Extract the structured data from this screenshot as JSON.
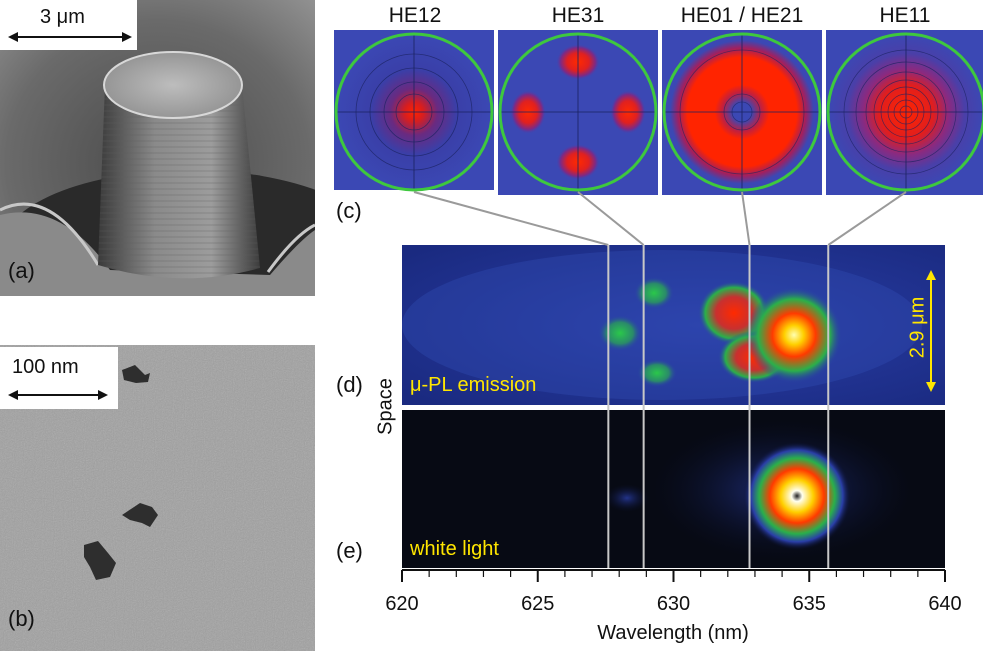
{
  "panels": {
    "a": {
      "label": "(a)",
      "scale_text": "3 μm"
    },
    "b": {
      "label": "(b)",
      "scale_text": "100 nm"
    },
    "c": {
      "label": "(c)",
      "modes": [
        {
          "name": "HE12",
          "type": "center"
        },
        {
          "name": "HE31",
          "type": "four-lobe"
        },
        {
          "name": "HE01 / HE21",
          "type": "ring"
        },
        {
          "name": "HE11",
          "type": "gaussian"
        }
      ]
    },
    "d": {
      "label": "(d)",
      "caption": "μ-PL emission",
      "scale_text": "2.9 μm"
    },
    "e": {
      "label": "(e)",
      "caption": "white light"
    },
    "space_label": "Space"
  },
  "axis": {
    "xlabel": "Wavelength (nm)",
    "ticks": [
      620,
      625,
      630,
      635,
      640
    ],
    "xlim": [
      620,
      640
    ],
    "mode_lines_nm": [
      627.6,
      628.9,
      632.8,
      635.7
    ]
  },
  "colors": {
    "ring_outline": "#3ec83e",
    "mode_bg": "#2a3fa0",
    "annotation_yellow": "#ffe600"
  }
}
